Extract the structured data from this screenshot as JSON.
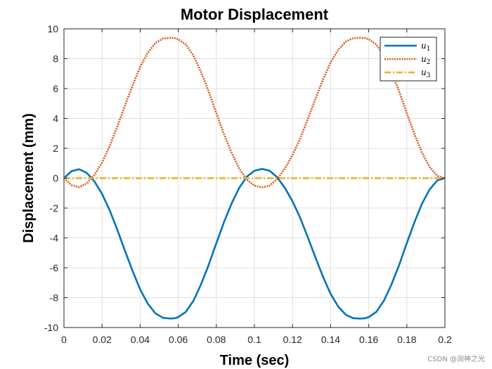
{
  "chart_data": {
    "type": "line",
    "title": "Motor Displacement",
    "xlabel": "Time (sec)",
    "ylabel": "Displacement (mm)",
    "xlim": [
      0,
      0.2
    ],
    "ylim": [
      -10,
      10
    ],
    "xticks": [
      0,
      0.02,
      0.04,
      0.06,
      0.08,
      0.1,
      0.12,
      0.14,
      0.16,
      0.18,
      0.2
    ],
    "xtick_labels": [
      "0",
      "0.02",
      "0.04",
      "0.06",
      "0.08",
      "0.1",
      "0.12",
      "0.14",
      "0.16",
      "0.18",
      "0.2"
    ],
    "yticks": [
      -10,
      -8,
      -6,
      -4,
      -2,
      0,
      2,
      4,
      6,
      8,
      10
    ],
    "ytick_labels": [
      "-10",
      "-8",
      "-6",
      "-4",
      "-2",
      "0",
      "2",
      "4",
      "6",
      "8",
      "10"
    ],
    "grid": true,
    "legend_position": "top-right",
    "series": [
      {
        "name": "u1",
        "label_base": "u",
        "label_sub": "1",
        "color": "#0072BD",
        "style": "solid",
        "x": [
          0,
          0.004,
          0.008,
          0.012,
          0.016,
          0.02,
          0.024,
          0.028,
          0.032,
          0.036,
          0.04,
          0.044,
          0.048,
          0.052,
          0.056,
          0.058,
          0.06,
          0.064,
          0.068,
          0.072,
          0.076,
          0.08,
          0.084,
          0.088,
          0.092,
          0.096,
          0.1,
          0.104,
          0.108,
          0.112,
          0.116,
          0.12,
          0.124,
          0.128,
          0.132,
          0.136,
          0.14,
          0.144,
          0.148,
          0.152,
          0.156,
          0.158,
          0.16,
          0.164,
          0.168,
          0.172,
          0.176,
          0.18,
          0.184,
          0.188,
          0.192,
          0.196,
          0.2
        ],
        "y": [
          0,
          0.47,
          0.6,
          0.35,
          -0.22,
          -1.05,
          -2.15,
          -3.45,
          -4.85,
          -6.2,
          -7.45,
          -8.4,
          -9.05,
          -9.35,
          -9.4,
          -9.38,
          -9.3,
          -8.95,
          -8.2,
          -7.1,
          -5.8,
          -4.35,
          -2.95,
          -1.7,
          -0.65,
          0.1,
          0.5,
          0.62,
          0.5,
          0.05,
          -0.65,
          -1.55,
          -2.65,
          -3.95,
          -5.3,
          -6.6,
          -7.75,
          -8.6,
          -9.15,
          -9.38,
          -9.4,
          -9.38,
          -9.3,
          -8.95,
          -8.2,
          -7.1,
          -5.8,
          -4.35,
          -2.95,
          -1.7,
          -0.75,
          -0.15,
          0
        ]
      },
      {
        "name": "u2",
        "label_base": "u",
        "label_sub": "2",
        "color": "#D95319",
        "style": "dotted",
        "x": [
          0,
          0.004,
          0.008,
          0.012,
          0.016,
          0.02,
          0.024,
          0.028,
          0.032,
          0.036,
          0.04,
          0.044,
          0.048,
          0.052,
          0.056,
          0.058,
          0.06,
          0.064,
          0.068,
          0.072,
          0.076,
          0.08,
          0.084,
          0.088,
          0.092,
          0.096,
          0.1,
          0.104,
          0.108,
          0.112,
          0.116,
          0.12,
          0.124,
          0.128,
          0.132,
          0.136,
          0.14,
          0.144,
          0.148,
          0.152,
          0.156,
          0.158,
          0.16,
          0.164,
          0.168,
          0.172,
          0.176,
          0.18,
          0.184,
          0.188,
          0.192,
          0.196,
          0.2
        ],
        "y": [
          0,
          -0.47,
          -0.6,
          -0.35,
          0.22,
          1.05,
          2.15,
          3.45,
          4.85,
          6.2,
          7.45,
          8.4,
          9.05,
          9.35,
          9.4,
          9.38,
          9.3,
          8.95,
          8.2,
          7.1,
          5.8,
          4.35,
          2.95,
          1.7,
          0.65,
          -0.1,
          -0.5,
          -0.62,
          -0.5,
          -0.05,
          0.65,
          1.55,
          2.65,
          3.95,
          5.3,
          6.6,
          7.75,
          8.6,
          9.15,
          9.38,
          9.4,
          9.38,
          9.3,
          8.95,
          8.2,
          7.1,
          5.8,
          4.35,
          2.95,
          1.7,
          0.75,
          0.15,
          0
        ]
      },
      {
        "name": "u3",
        "label_base": "u",
        "label_sub": "3",
        "color": "#EDB120",
        "style": "dashdot",
        "x": [
          0,
          0.2
        ],
        "y": [
          0,
          0
        ]
      }
    ]
  },
  "watermark": "CSDN @润神之光"
}
